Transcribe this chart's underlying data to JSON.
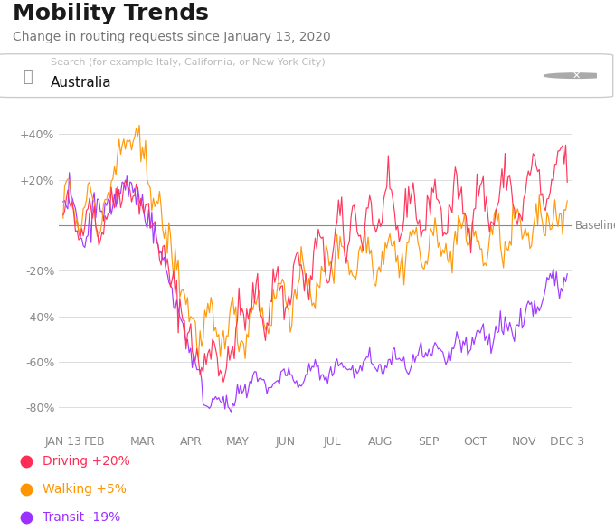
{
  "title": "Mobility Trends",
  "subtitle": "Change in routing requests since January 13, 2020",
  "search_placeholder": "Search (for example Italy, California, or New York City)",
  "search_text": "Australia",
  "baseline_label": "Baseline",
  "colors": {
    "driving": "#FF2D55",
    "walking": "#FF9500",
    "transit": "#9B30FF"
  },
  "legend": [
    {
      "label": "Driving +20%",
      "color": "#FF2D55"
    },
    {
      "label": "Walking +5%",
      "color": "#FF9500"
    },
    {
      "label": "Transit -19%",
      "color": "#9B30FF"
    }
  ],
  "yticks": [
    40,
    20,
    0,
    -20,
    -40,
    -60,
    -80
  ],
  "ytick_labels": [
    "+40%",
    "+20%",
    "",
    "-20%",
    "-40%",
    "-60%",
    "-80%"
  ],
  "xtick_labels": [
    "JAN 13",
    "FEB",
    "MAR",
    "APR",
    "MAY",
    "JUN",
    "JUL",
    "AUG",
    "SEP",
    "OCT",
    "NOV",
    "DEC 3"
  ],
  "background_color": "#FFFFFF",
  "grid_color": "#DDDDDD",
  "title_fontsize": 18,
  "subtitle_fontsize": 10,
  "axis_fontsize": 9
}
